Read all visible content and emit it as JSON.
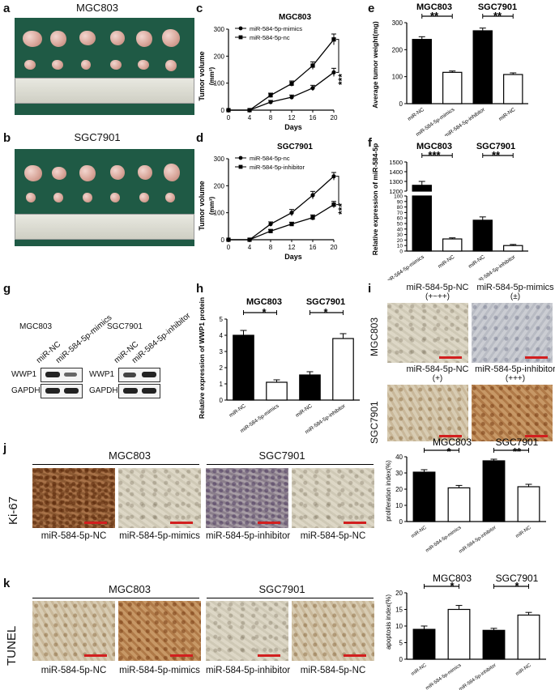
{
  "panels": {
    "a": {
      "label": "a",
      "title": "MGC803"
    },
    "b": {
      "label": "b",
      "title": "SGC7901"
    },
    "c": {
      "label": "c",
      "title": "MGC803",
      "ylabel": "Tumor volume",
      "yunit": "(mm³)",
      "xlabel": "Days",
      "legend": [
        "miR-584-5p-mimics",
        "miR-584-5p-nc"
      ],
      "sig": "***"
    },
    "d": {
      "label": "d",
      "title": "SGC7901",
      "ylabel": "Tumor volume",
      "yunit": "(mm³)",
      "xlabel": "Days",
      "legend": [
        "miR-584-5p-nc",
        "miR-584-5p-inhibitor"
      ],
      "sig": "***"
    },
    "e": {
      "label": "e",
      "ylabel": "Average tumor weight(mg)",
      "group1": "MGC803",
      "group2": "SGC7901",
      "sig1": "**",
      "sig2": "**"
    },
    "f": {
      "label": "f",
      "ylabel": "Relative expression of miR-584-5p",
      "group1": "MGC803",
      "group2": "SGC7901",
      "sig1": "***",
      "sig2": "**"
    },
    "g": {
      "label": "g",
      "cell1": "MGC803",
      "cell2": "SGC7901",
      "lanes": [
        "miR-NC",
        "miR-584-5p-mimics",
        "miR-NC",
        "miR-584-5p-inhibitor"
      ],
      "row1": "WWP1",
      "row2": "GAPDH"
    },
    "h": {
      "label": "h",
      "ylabel": "Relative expression of WWP1 protein",
      "group1": "MGC803",
      "group2": "SGC7901",
      "sig1": "*",
      "sig2": "*"
    },
    "i": {
      "label": "i",
      "row1": "MGC803",
      "row2": "SGC7901",
      "top": [
        {
          "name": "miR-584-5p-NC",
          "score": "(+~++)"
        },
        {
          "name": "miR-584-5p-mimics",
          "score": "(±)"
        }
      ],
      "bottom": [
        {
          "name": "miR-584-5p-NC",
          "score": "(+)"
        },
        {
          "name": "miR-584-5p-inhibitor",
          "score": "(+++)"
        }
      ]
    },
    "j": {
      "label": "j",
      "row": "Ki-67",
      "group1": "MGC803",
      "group2": "SGC7901",
      "captions": [
        "miR-584-5p-NC",
        "miR-584-5p-mimics",
        "miR-584-5p-inhibitor",
        "miR-584-5p-NC"
      ],
      "ylabel": "proliferation index(%)",
      "sig1": "*",
      "sig2": "**"
    },
    "k": {
      "label": "k",
      "row": "TUNEL",
      "group1": "MGC803",
      "group2": "SGC7901",
      "captions": [
        "miR-584-5p-NC",
        "miR-584-5p-mimics",
        "miR-584-5p-inhibitor",
        "miR-584-5p-NC"
      ],
      "ylabel": "apoptosis index(%)",
      "sig1": "*",
      "sig2": "*"
    }
  },
  "chart_data": [
    {
      "id": "c",
      "type": "line",
      "x": [
        0,
        4,
        8,
        12,
        16,
        20
      ],
      "xlim": [
        0,
        20
      ],
      "ylim": [
        0,
        300
      ],
      "xticks": [
        0,
        4,
        8,
        12,
        16,
        20
      ],
      "yticks": [
        0,
        100,
        200,
        300
      ],
      "series": [
        {
          "name": "miR-584-5p-mimics",
          "values": [
            0,
            0,
            30,
            48,
            82,
            140
          ],
          "err": [
            0,
            0,
            6,
            8,
            10,
            15
          ],
          "marker": "circle"
        },
        {
          "name": "miR-584-5p-nc",
          "values": [
            0,
            0,
            55,
            98,
            165,
            262
          ],
          "err": [
            0,
            0,
            8,
            10,
            14,
            20
          ],
          "marker": "square"
        }
      ]
    },
    {
      "id": "d",
      "type": "line",
      "x": [
        0,
        4,
        8,
        12,
        16,
        20
      ],
      "xlim": [
        0,
        20
      ],
      "ylim": [
        0,
        300
      ],
      "xticks": [
        0,
        4,
        8,
        12,
        16,
        20
      ],
      "yticks": [
        0,
        100,
        200,
        300
      ],
      "series": [
        {
          "name": "miR-584-5p-nc",
          "values": [
            0,
            0,
            58,
            100,
            165,
            235
          ],
          "err": [
            0,
            0,
            8,
            12,
            14,
            14
          ],
          "marker": "circle"
        },
        {
          "name": "miR-584-5p-inhibitor",
          "values": [
            0,
            0,
            32,
            58,
            82,
            130
          ],
          "err": [
            0,
            0,
            6,
            7,
            10,
            12
          ],
          "marker": "square"
        }
      ]
    },
    {
      "id": "e",
      "type": "bar",
      "categories": [
        "miR-NC",
        "miR-584-5p-mimics",
        "miR-584-5p-inhibitor",
        "miR-NC"
      ],
      "values": [
        238,
        116,
        270,
        108
      ],
      "err": [
        10,
        5,
        10,
        6
      ],
      "fills": [
        "black",
        "white",
        "black",
        "white"
      ],
      "ylim": [
        0,
        300
      ],
      "yticks": [
        0,
        100,
        200,
        300
      ]
    },
    {
      "id": "f",
      "type": "bar",
      "categories": [
        "miR-584-5p-mimics",
        "miR-NC",
        "miR-NC",
        "miR-584-5p-inhibitor"
      ],
      "values": [
        1260,
        22,
        56,
        10
      ],
      "err": [
        40,
        2,
        6,
        2
      ],
      "fills": [
        "black",
        "white",
        "black",
        "white"
      ],
      "axis_break": true,
      "yticks_low": [
        0,
        10,
        20,
        30,
        40,
        50,
        60,
        70,
        80,
        90,
        100
      ],
      "yticks_high": [
        1200,
        1300,
        1400,
        1500
      ]
    },
    {
      "id": "h",
      "type": "bar",
      "categories": [
        "miR-NC",
        "miR-584-5p-mimics",
        "miR-NC",
        "miR-584-5p-inhibitor"
      ],
      "values": [
        4.0,
        1.1,
        1.55,
        3.8
      ],
      "err": [
        0.3,
        0.15,
        0.2,
        0.3
      ],
      "fills": [
        "black",
        "white",
        "black",
        "white"
      ],
      "ylim": [
        0,
        5
      ],
      "yticks": [
        0,
        1,
        2,
        3,
        4,
        5
      ]
    },
    {
      "id": "j",
      "type": "bar",
      "categories": [
        "miR-NC",
        "miR-584-5p-mimics",
        "miR-584-5p-inhibitor",
        "miR-NC"
      ],
      "values": [
        30.5,
        20.8,
        37.5,
        21.5
      ],
      "err": [
        1.5,
        1.5,
        1,
        1.5
      ],
      "fills": [
        "black",
        "white",
        "black",
        "white"
      ],
      "ylim": [
        0,
        40
      ],
      "yticks": [
        0,
        10,
        20,
        30,
        40
      ]
    },
    {
      "id": "k",
      "type": "bar",
      "categories": [
        "miR-NC",
        "miR-584-5p-mimics",
        "miR-584-5p-inhibitor",
        "miR-NC"
      ],
      "values": [
        9.0,
        15.0,
        8.7,
        13.3
      ],
      "err": [
        1,
        1.2,
        0.6,
        0.8
      ],
      "fills": [
        "black",
        "white",
        "black",
        "white"
      ],
      "ylim": [
        0,
        20
      ],
      "yticks": [
        0,
        5,
        10,
        15,
        20
      ]
    }
  ]
}
